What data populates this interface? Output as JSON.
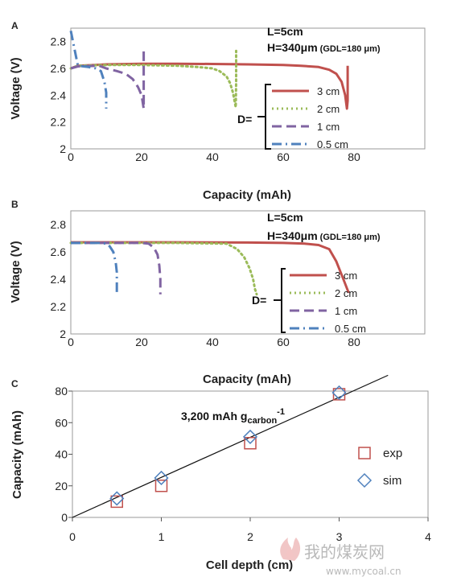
{
  "chart_data": [
    {
      "panel": "A",
      "type": "line",
      "xlabel": "Capacity (mAh)",
      "ylabel": "Voltage (V)",
      "xlim": [
        0,
        100
      ],
      "ylim": [
        2.0,
        2.9
      ],
      "xticks": [
        "0",
        "20",
        "40",
        "60",
        "80"
      ],
      "yticks": [
        "2",
        "2.2",
        "2.4",
        "2.6",
        "2.8"
      ],
      "annotation_L": "L=5cm",
      "annotation_H": "H=340μm",
      "annotation_GDL": "(GDL=180 μm)",
      "legend_prefix": "D=",
      "series": [
        {
          "name": "3 cm",
          "color": "#c0504d",
          "dash": "solid",
          "x": [
            0,
            2,
            10,
            20,
            30,
            40,
            50,
            60,
            65,
            70,
            73,
            75,
            76.5,
            77.5,
            78,
            78.2,
            78.2
          ],
          "y": [
            2.6,
            2.62,
            2.63,
            2.635,
            2.635,
            2.633,
            2.63,
            2.625,
            2.62,
            2.61,
            2.59,
            2.56,
            2.5,
            2.4,
            2.3,
            2.36,
            2.62
          ]
        },
        {
          "name": "2 cm",
          "color": "#9bbb59",
          "dash": "dot",
          "x": [
            0,
            2,
            10,
            20,
            30,
            36,
            40,
            42,
            44,
            45,
            45.8,
            46.3,
            46.6,
            46.7,
            46.7
          ],
          "y": [
            2.6,
            2.62,
            2.625,
            2.625,
            2.62,
            2.61,
            2.6,
            2.58,
            2.54,
            2.49,
            2.42,
            2.35,
            2.31,
            2.5,
            2.73
          ]
        },
        {
          "name": "1 cm",
          "color": "#8064a2",
          "dash": "dash",
          "x": [
            0,
            2,
            8,
            10,
            13,
            15.5,
            17.5,
            19,
            20,
            20.6,
            20.6
          ],
          "y": [
            2.6,
            2.615,
            2.62,
            2.6,
            2.58,
            2.56,
            2.52,
            2.46,
            2.4,
            2.3,
            2.73
          ]
        },
        {
          "name": "0.5 cm",
          "color": "#4f81bd",
          "dash": "dashdot",
          "x": [
            0,
            2,
            5,
            7,
            8.5,
            9.5,
            10,
            10,
            10
          ],
          "y": [
            2.88,
            2.62,
            2.61,
            2.6,
            2.58,
            2.5,
            2.42,
            2.33,
            2.3
          ]
        }
      ]
    },
    {
      "panel": "B",
      "type": "line",
      "xlabel": "Capacity (mAh)",
      "ylabel": "Voltage (V)",
      "xlim": [
        0,
        100
      ],
      "ylim": [
        2.0,
        2.9
      ],
      "xticks": [
        "0",
        "20",
        "40",
        "60",
        "80"
      ],
      "yticks": [
        "2",
        "2.2",
        "2.4",
        "2.6",
        "2.8"
      ],
      "annotation_L": "L=5cm",
      "annotation_H": "H=340μm",
      "annotation_GDL": "(GDL=180 μm)",
      "legend_prefix": "D=",
      "series": [
        {
          "name": "3 cm",
          "color": "#c0504d",
          "dash": "solid",
          "x": [
            0,
            10,
            30,
            50,
            60,
            66,
            70,
            73,
            75,
            77,
            78.5
          ],
          "y": [
            2.67,
            2.67,
            2.67,
            2.668,
            2.665,
            2.66,
            2.65,
            2.62,
            2.53,
            2.4,
            2.3
          ]
        },
        {
          "name": "2 cm",
          "color": "#9bbb59",
          "dash": "dot",
          "x": [
            0,
            10,
            30,
            44,
            47,
            49,
            50.5,
            51.5,
            52,
            52.5
          ],
          "y": [
            2.665,
            2.665,
            2.665,
            2.66,
            2.62,
            2.56,
            2.48,
            2.4,
            2.33,
            2.29
          ]
        },
        {
          "name": "1 cm",
          "color": "#8064a2",
          "dash": "dash",
          "x": [
            0,
            10,
            20,
            22,
            23.5,
            24.5,
            25,
            25.3,
            25.3
          ],
          "y": [
            2.665,
            2.665,
            2.665,
            2.66,
            2.63,
            2.58,
            2.5,
            2.4,
            2.29
          ]
        },
        {
          "name": "0.5 cm",
          "color": "#4f81bd",
          "dash": "dashdot",
          "x": [
            0,
            8,
            10,
            11,
            12,
            12.7,
            13,
            13,
            13
          ],
          "y": [
            2.665,
            2.665,
            2.66,
            2.64,
            2.6,
            2.52,
            2.45,
            2.36,
            2.29
          ]
        }
      ]
    },
    {
      "panel": "C",
      "type": "scatter",
      "xlabel": "Cell depth (cm)",
      "ylabel": "Capacity (mAh)",
      "xlim": [
        0,
        4
      ],
      "ylim": [
        0,
        80
      ],
      "xticks": [
        "0",
        "1",
        "2",
        "3",
        "4"
      ],
      "yticks": [
        "0",
        "20",
        "40",
        "60",
        "80"
      ],
      "annotation_main": "3,200 mAh g",
      "annotation_sub": "carbon",
      "annotation_sup": "-1",
      "fit_line": {
        "x": [
          0,
          3.55
        ],
        "y": [
          0,
          90
        ]
      },
      "series": [
        {
          "name": "exp",
          "color": "#c0504d",
          "marker": "square",
          "x": [
            0.5,
            1,
            2,
            3
          ],
          "y": [
            10,
            20,
            47,
            78
          ]
        },
        {
          "name": "sim",
          "color": "#4f81bd",
          "marker": "diamond",
          "x": [
            0.5,
            1,
            2,
            3
          ],
          "y": [
            12,
            25,
            51,
            79
          ]
        }
      ]
    }
  ],
  "watermark": {
    "text": "我的煤炭网",
    "url": "www.mycoal.cn"
  }
}
